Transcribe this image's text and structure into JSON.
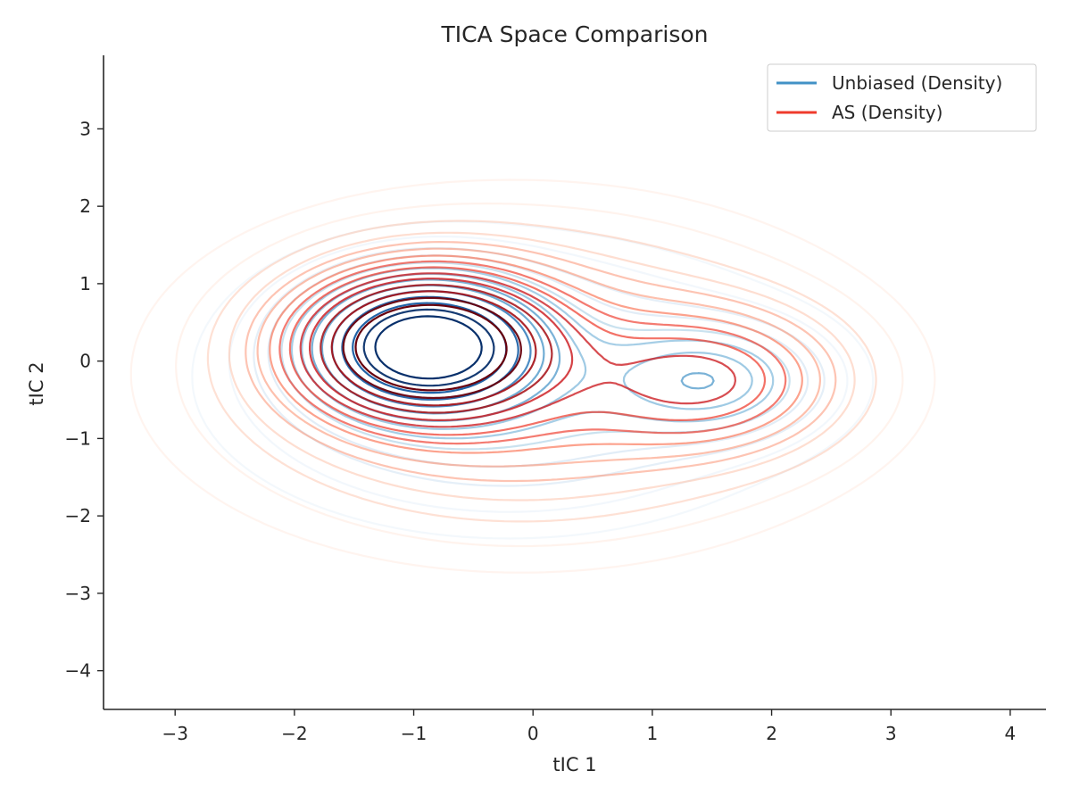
{
  "chart_data": {
    "type": "contour",
    "title": "TICA Space Comparison",
    "xlabel": "tIC 1",
    "ylabel": "tIC 2",
    "xlim": [
      -3.6,
      4.3
    ],
    "ylim": [
      -4.5,
      3.95
    ],
    "xticks": [
      -3,
      -2,
      -1,
      0,
      1,
      2,
      3,
      4
    ],
    "yticks": [
      -4,
      -3,
      -2,
      -1,
      0,
      1,
      2,
      3
    ],
    "xtick_labels": [
      "−3",
      "−2",
      "−1",
      "0",
      "1",
      "2",
      "3",
      "4"
    ],
    "ytick_labels": [
      "−4",
      "−3",
      "−2",
      "−1",
      "0",
      "1",
      "2",
      "3"
    ],
    "grid": false,
    "legend_position": "top-right",
    "series": [
      {
        "name": "Unbiased (Density)",
        "colormap": "Blues",
        "legend_color": "#4292c6",
        "mode_approx": [
          -0.9,
          0.2
        ],
        "secondary_mode_approx": [
          1.5,
          -0.25
        ],
        "extent_x_approx": [
          -2.5,
          2.8
        ],
        "extent_y_approx": [
          -2.3,
          2.3
        ]
      },
      {
        "name": "AS (Density)",
        "colormap": "Reds",
        "legend_color": "#ef3b2c",
        "mode_approx": [
          -0.9,
          0.2
        ],
        "secondary_mode_approx": [
          1.5,
          -0.25
        ],
        "extent_x_approx": [
          -2.7,
          3.1
        ],
        "extent_y_approx": [
          -3.05,
          2.6
        ]
      }
    ]
  }
}
